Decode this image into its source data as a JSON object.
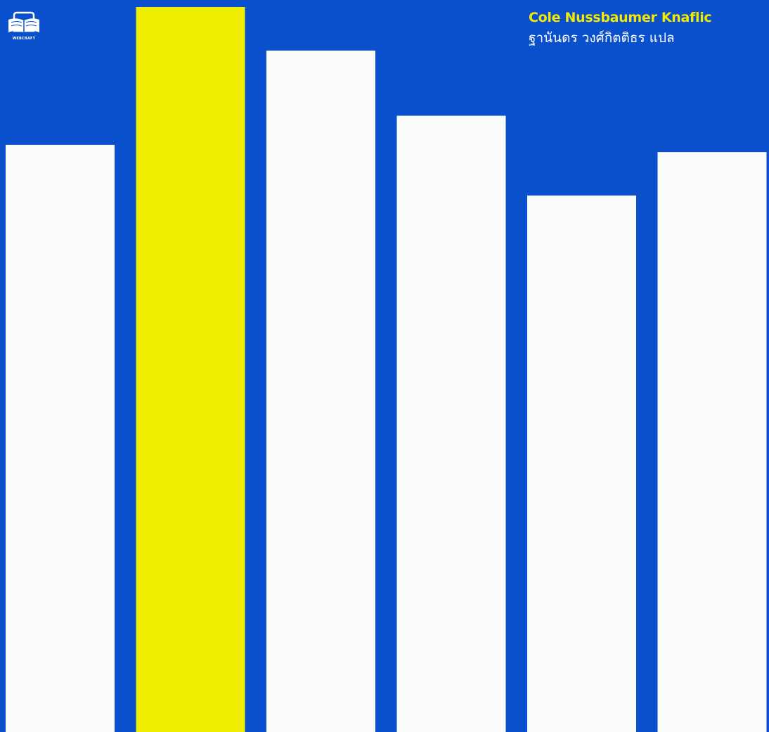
{
  "colors": {
    "background": "#0a4fcb",
    "bar": "#fbfdfc",
    "highlight": "#f0ee00",
    "author_text": "#f2ea00",
    "translator_text": "#ffffff"
  },
  "publisher_logo": {
    "icon": "open-book-icon",
    "text": "WEBCRAFT"
  },
  "credits": {
    "author": "Cole Nussbaumer Knaflic",
    "translator": "ฐานันดร วงศ์กิตติธร แปล"
  },
  "chart_data": {
    "type": "bar",
    "bars": [
      {
        "value": 0.81,
        "highlight": false
      },
      {
        "value": 1.0,
        "highlight": true
      },
      {
        "value": 0.94,
        "highlight": false
      },
      {
        "value": 0.85,
        "highlight": false
      },
      {
        "value": 0.74,
        "highlight": false
      },
      {
        "value": 0.8,
        "highlight": false
      }
    ]
  }
}
